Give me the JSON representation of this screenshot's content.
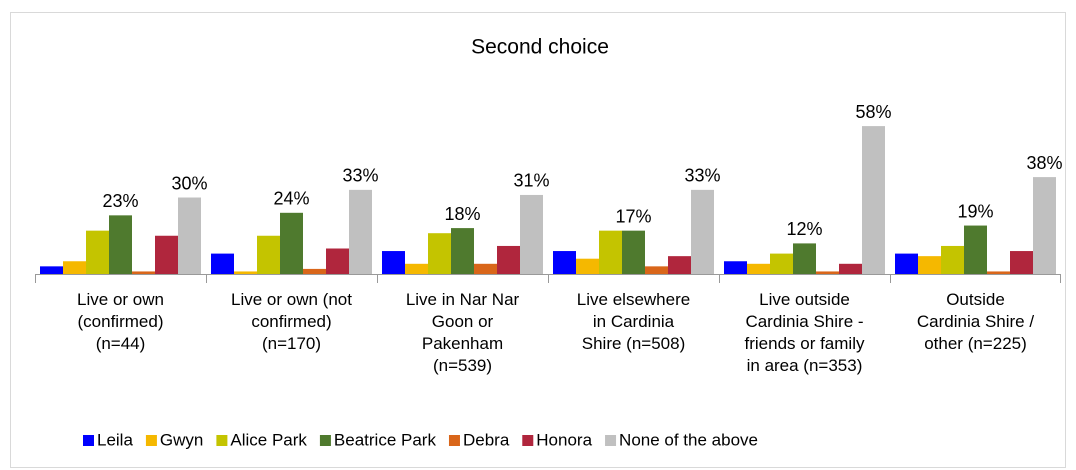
{
  "chart_data": {
    "type": "bar",
    "title": "Second choice",
    "categories": [
      "Live or own\n(confirmed)\n(n=44)",
      "Live or own (not\nconfirmed)\n(n=170)",
      "Live in Nar Nar\nGoon or\nPakenham\n(n=539)",
      "Live elsewhere\nin  Cardinia\nShire (n=508)",
      "Live outside\nCardinia Shire -\nfriends or family\nin area (n=353)",
      "Outside\nCardinia Shire /\nother (n=225)"
    ],
    "series": [
      {
        "name": "Leila",
        "color": "#0000ff",
        "values": [
          3,
          8,
          9,
          9,
          5,
          8
        ]
      },
      {
        "name": "Gwyn",
        "color": "#f5b800",
        "values": [
          5,
          1,
          4,
          6,
          4,
          7
        ]
      },
      {
        "name": "Alice Park",
        "color": "#c4c400",
        "values": [
          17,
          15,
          16,
          17,
          8,
          11
        ]
      },
      {
        "name": "Beatrice Park",
        "color": "#4f7a2e",
        "values": [
          23,
          24,
          18,
          17,
          12,
          19
        ],
        "value_labels": [
          "23%",
          "24%",
          "18%",
          "17%",
          "12%",
          "19%"
        ]
      },
      {
        "name": "Debra",
        "color": "#d9661a",
        "values": [
          1,
          2,
          4,
          3,
          1,
          1
        ]
      },
      {
        "name": "Honora",
        "color": "#b0263d",
        "values": [
          15,
          10,
          11,
          7,
          4,
          9
        ]
      },
      {
        "name": "None of the above",
        "color": "#c0c0c0",
        "values": [
          30,
          33,
          31,
          33,
          58,
          38
        ],
        "value_labels": [
          "30%",
          "33%",
          "31%",
          "33%",
          "58%",
          "38%"
        ]
      }
    ]
  }
}
